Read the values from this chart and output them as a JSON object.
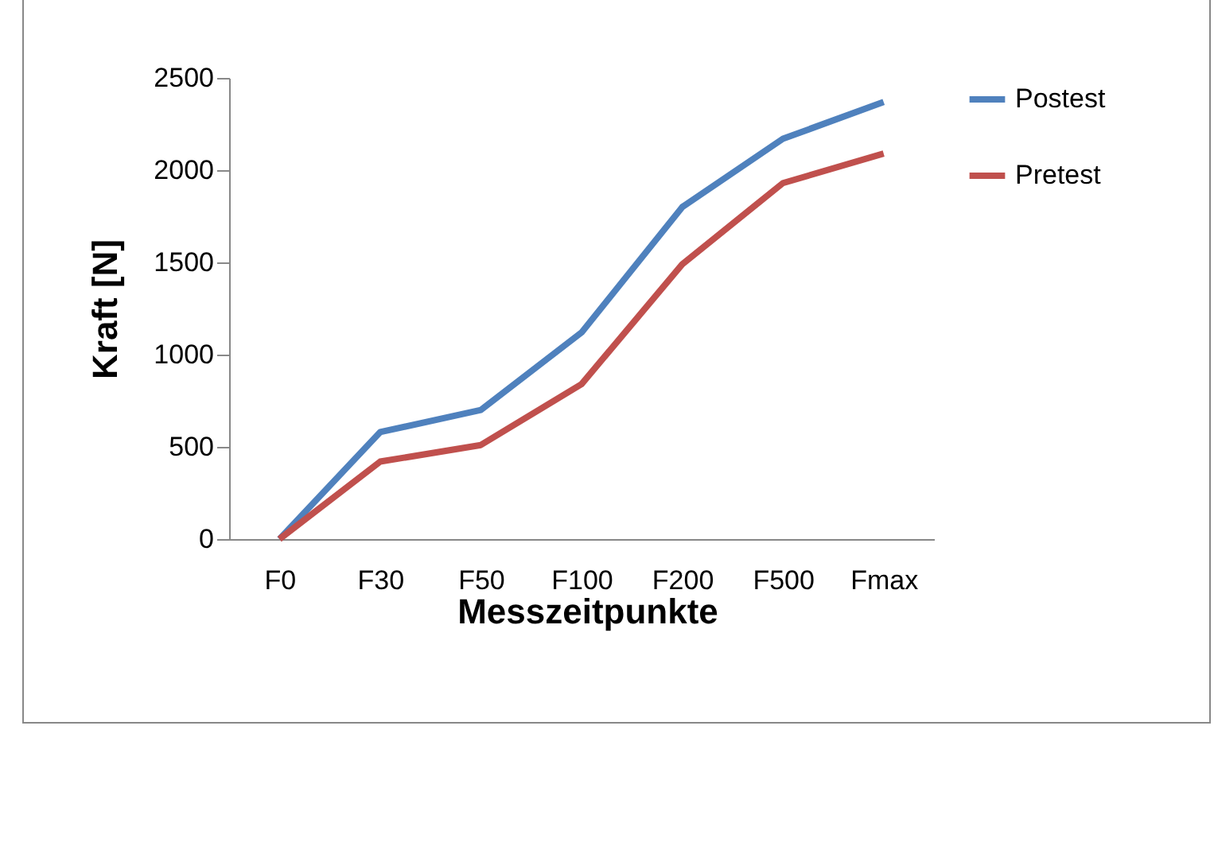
{
  "chart_data": {
    "type": "line",
    "xlabel": "Messzeitpunkte",
    "ylabel": "Kraft [N]",
    "categories": [
      "F0",
      "F30",
      "F50",
      "F100",
      "F200",
      "F500",
      "Fmax"
    ],
    "series": [
      {
        "name": "Postest",
        "color": "#4f81bd",
        "values": [
          0,
          580,
          700,
          1120,
          1800,
          2170,
          2370
        ]
      },
      {
        "name": "Pretest",
        "color": "#c0504d",
        "values": [
          0,
          420,
          510,
          840,
          1490,
          1930,
          2090
        ]
      }
    ],
    "ylim": [
      0,
      2500
    ],
    "yticks": [
      0,
      500,
      1000,
      1500,
      2000,
      2500
    ],
    "grid": false,
    "legend": "right",
    "marker": "none",
    "line_style": "solid"
  }
}
